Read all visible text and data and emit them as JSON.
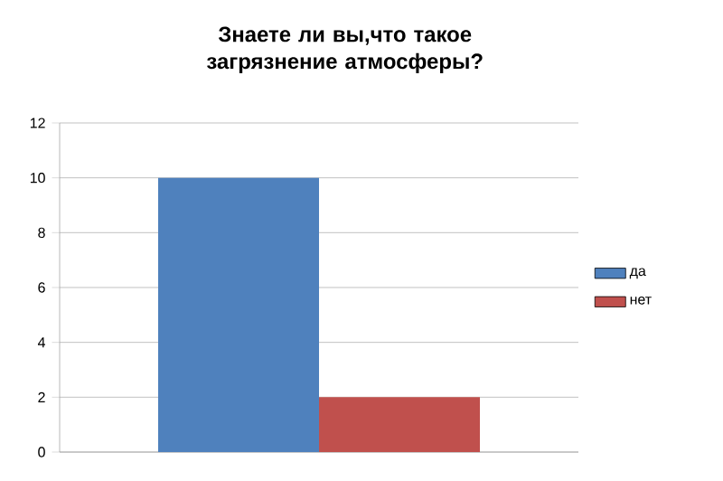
{
  "chart_data": {
    "type": "bar",
    "title": "Знаете ли вы,что такое загрязнение атмосферы?",
    "categories": [
      null
    ],
    "series": [
      {
        "name": "да",
        "color": "#4f81bd",
        "values": [
          10
        ]
      },
      {
        "name": "нет",
        "color": "#c0504d",
        "values": [
          2
        ]
      }
    ],
    "ylim": [
      0,
      12
    ],
    "yticks": [
      0,
      2,
      4,
      6,
      8,
      10,
      12
    ],
    "grid": "y",
    "legend": "right"
  }
}
